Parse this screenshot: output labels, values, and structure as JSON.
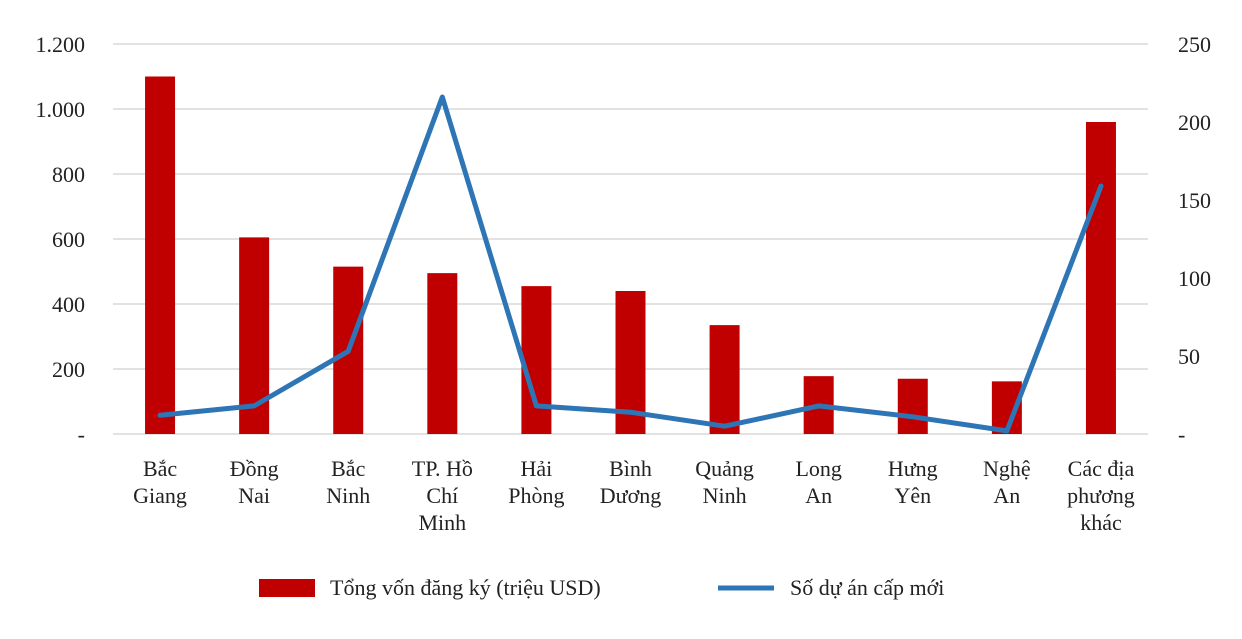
{
  "chart_data": {
    "type": "bar",
    "categories": [
      [
        "Bắc",
        "Giang"
      ],
      [
        "Đồng",
        "Nai"
      ],
      [
        "Bắc",
        "Ninh"
      ],
      [
        "TP. Hồ",
        "Chí",
        "Minh"
      ],
      [
        "Hải",
        "Phòng"
      ],
      [
        "Bình",
        "Dương"
      ],
      [
        "Quảng",
        "Ninh"
      ],
      [
        "Long",
        "An"
      ],
      [
        "Hưng",
        "Yên"
      ],
      [
        "Nghệ",
        "An"
      ],
      [
        "Các địa",
        "phương",
        "khác"
      ]
    ],
    "series": [
      {
        "name": "Tổng vốn đăng ký (triệu USD)",
        "type": "bar",
        "axis": "left",
        "color": "#c00000",
        "values": [
          1100,
          605,
          515,
          495,
          455,
          440,
          335,
          178,
          170,
          162,
          960
        ]
      },
      {
        "name": "Số dự án cấp mới",
        "type": "line",
        "axis": "right",
        "color": "#2e75b6",
        "values": [
          12,
          18,
          53,
          216,
          18,
          14,
          5,
          18,
          11,
          2,
          159
        ]
      }
    ],
    "y_left": {
      "min": 0,
      "max": 1200,
      "ticks": [
        "-",
        "200",
        "400",
        "600",
        "800",
        "1.000",
        "1.200"
      ]
    },
    "y_right": {
      "min": 0,
      "max": 250,
      "ticks": [
        "-",
        "50",
        "100",
        "150",
        "200",
        "250"
      ]
    },
    "grid": true,
    "legend": "bottom"
  }
}
